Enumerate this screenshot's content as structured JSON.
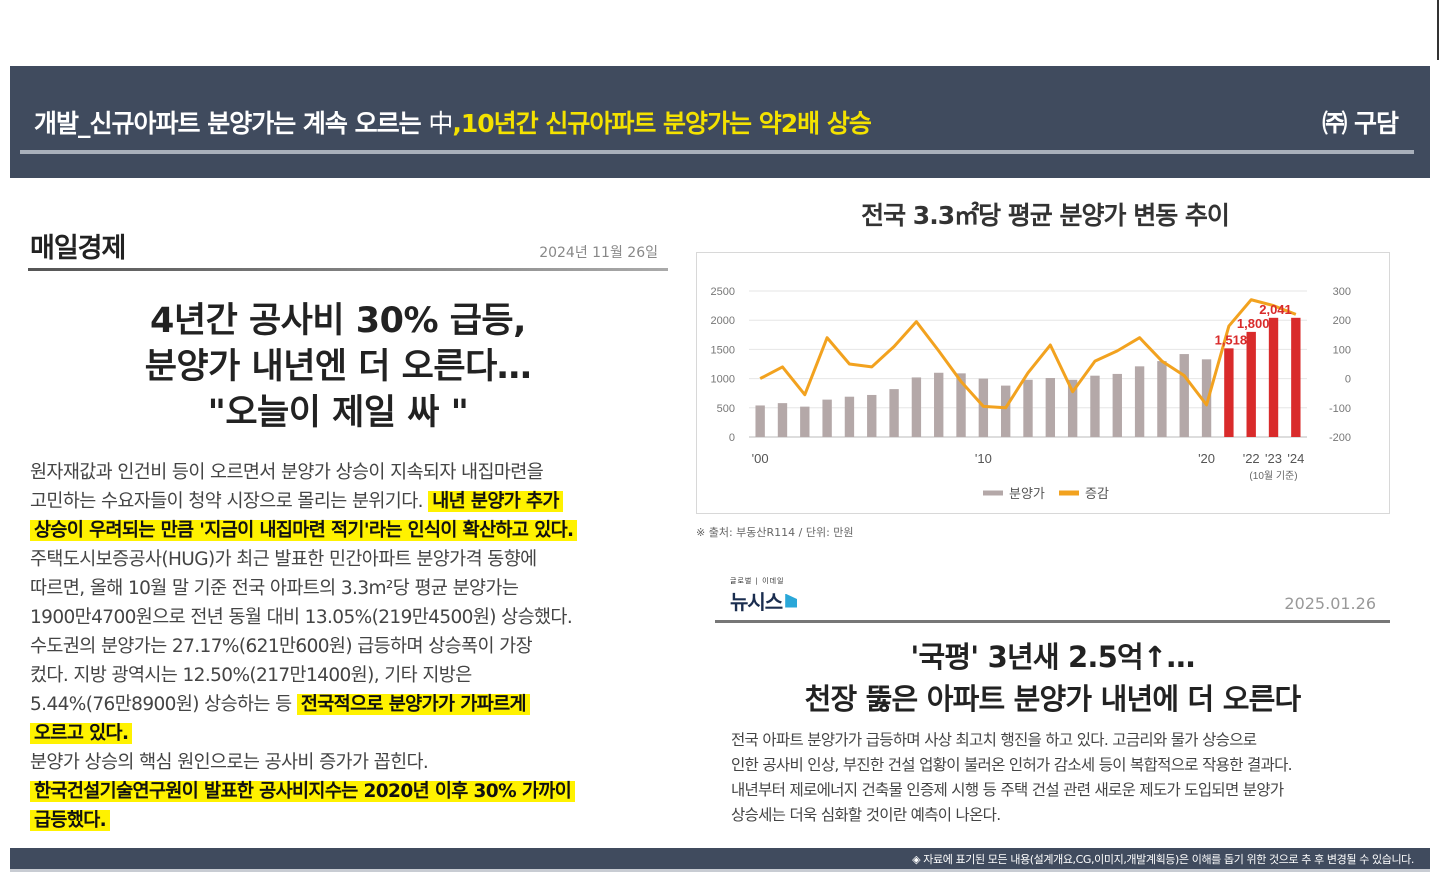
{
  "header": {
    "title_part1": "개발_신규아파트 분양가는 계속 오르는 ",
    "title_mid": "中",
    "title_part2": ",10년간 신규아파트 분양가는 약2배 상승",
    "brand": "㈜ 구담"
  },
  "left_article": {
    "publisher": "매일경제",
    "date": "2024년 11월 26일",
    "headline": [
      "4년간 공사비 30% 급등,",
      "분양가 내년엔 더 오른다…",
      "\"오늘이 제일 싸 \""
    ],
    "body": [
      [
        {
          "t": "원자재값과 인건비 등이 오르면서 분양가 상승이 지속되자 내집마련을",
          "h": false
        }
      ],
      [
        {
          "t": "고민하는 수요자들이 청약 시장으로 몰리는 분위기다. ",
          "h": false
        },
        {
          "t": "내년 분양가 추가",
          "h": true
        }
      ],
      [
        {
          "t": "상승이 우려되는 만큼 '지금이 내집마련 적기'라는 인식이 확산하고 있다.",
          "h": true
        }
      ],
      [
        {
          "t": "주택도시보증공사(HUG)가 최근 발표한 민간아파트 분양가격 동향에",
          "h": false
        }
      ],
      [
        {
          "t": "따르면, 올해 10월 말 기준 전국 아파트의 3.3m²당 평균 분양가는",
          "h": false
        }
      ],
      [
        {
          "t": "1900만4700원으로 전년 동월 대비 13.05%(219만4500원) 상승했다.",
          "h": false
        }
      ],
      [
        {
          "t": "수도권의 분양가는 27.17%(621만600원) 급등하며 상승폭이 가장",
          "h": false
        }
      ],
      [
        {
          "t": "컸다. 지방 광역시는 12.50%(217만1400원), 기타 지방은",
          "h": false
        }
      ],
      [
        {
          "t": "5.44%(76만8900원) 상승하는 등 ",
          "h": false
        },
        {
          "t": "전국적으로 분양가가 가파르게",
          "h": true
        }
      ],
      [
        {
          "t": "오르고 있다.",
          "h": true
        }
      ],
      [
        {
          "t": "분양가 상승의 핵심 원인으로는 공사비 증가가 꼽힌다.",
          "h": false
        }
      ],
      [
        {
          "t": "한국건설기술연구원이 발표한 공사비지수는 2020년 이후 30% 가까이",
          "h": true
        }
      ],
      [
        {
          "t": "급등했다.",
          "h": true
        }
      ]
    ]
  },
  "chart_section": {
    "title": "전국 3.3㎡당 평균 분양가 변동 추이",
    "source": "※ 출처: 부동산R114 / 단위: 만원"
  },
  "chart_data": {
    "type": "bar",
    "x": [
      2000,
      2001,
      2002,
      2003,
      2004,
      2005,
      2006,
      2007,
      2008,
      2009,
      2010,
      2011,
      2012,
      2013,
      2014,
      2015,
      2016,
      2017,
      2018,
      2019,
      2020,
      2021,
      2022,
      2023,
      2024
    ],
    "xtick_labels": [
      "'00",
      "'10",
      "'20",
      "'22",
      "'23",
      "'24"
    ],
    "xtick_note": "(10월 기준)",
    "series": [
      {
        "name": "분양가",
        "axis": "left",
        "kind": "bar",
        "values": [
          540,
          580,
          520,
          640,
          690,
          720,
          820,
          1020,
          1100,
          1090,
          1000,
          880,
          980,
          1010,
          980,
          1050,
          1080,
          1210,
          1300,
          1420,
          1330,
          1518,
          1800,
          2041,
          2041
        ],
        "colors": [
          "#b4a8a8",
          "#b4a8a8",
          "#b4a8a8",
          "#b4a8a8",
          "#b4a8a8",
          "#b4a8a8",
          "#b4a8a8",
          "#b4a8a8",
          "#b4a8a8",
          "#b4a8a8",
          "#b4a8a8",
          "#b4a8a8",
          "#b4a8a8",
          "#b4a8a8",
          "#b4a8a8",
          "#b4a8a8",
          "#b4a8a8",
          "#b4a8a8",
          "#b4a8a8",
          "#b4a8a8",
          "#b4a8a8",
          "#d92b2b",
          "#d92b2b",
          "#d92b2b",
          "#d92b2b"
        ]
      },
      {
        "name": "증감",
        "axis": "right",
        "kind": "line",
        "color": "#f2a21f",
        "values": [
          0,
          40,
          -55,
          140,
          50,
          40,
          110,
          195,
          95,
          -10,
          -95,
          -100,
          20,
          115,
          -45,
          60,
          95,
          140,
          60,
          10,
          -90,
          180,
          270,
          250,
          220
        ]
      }
    ],
    "data_labels": [
      {
        "x": 2021,
        "text": "1,518"
      },
      {
        "x": 2022,
        "text": "1,800"
      },
      {
        "x": 2023,
        "text": "2,041"
      }
    ],
    "left_axis": {
      "ticks": [
        0,
        500,
        1000,
        1500,
        2000,
        2500
      ],
      "range": [
        0,
        2500
      ]
    },
    "right_axis": {
      "ticks": [
        -200,
        -100,
        0,
        100,
        200,
        300
      ],
      "range": [
        -200,
        300
      ]
    },
    "legend": [
      "분양가",
      "증감"
    ],
    "legend_position": "bottom",
    "grid": true
  },
  "right_article": {
    "publisher_small": "글로벌 | 이데일",
    "publisher": "뉴시스",
    "date": "2025.01.26",
    "headline": [
      "'국평' 3년새 2.5억↑…",
      "천장 뚫은 아파트 분양가 내년에 더 오른다"
    ],
    "body": [
      "전국 아파트 분양가가 급등하며 사상 최고치 행진을 하고 있다. 고금리와 물가 상승으로",
      "인한 공사비 인상, 부진한 건설 업황이 불러온 인허가 감소세 등이 복합적으로 작용한 결과다.",
      "내년부터 제로에너지 건축물 인증제 시행 등 주택 건설 관련 새로운 제도가 도입되면 분양가",
      "상승세는 더욱 심화할 것이란 예측이 나온다."
    ]
  },
  "footer": {
    "note": "◈ 자료에 표기된 모든 내용(설계개요,CG,이미지,개발계획등)은 이해를 돕기 위한 것으로 추 후 변경될 수 있습니다."
  }
}
